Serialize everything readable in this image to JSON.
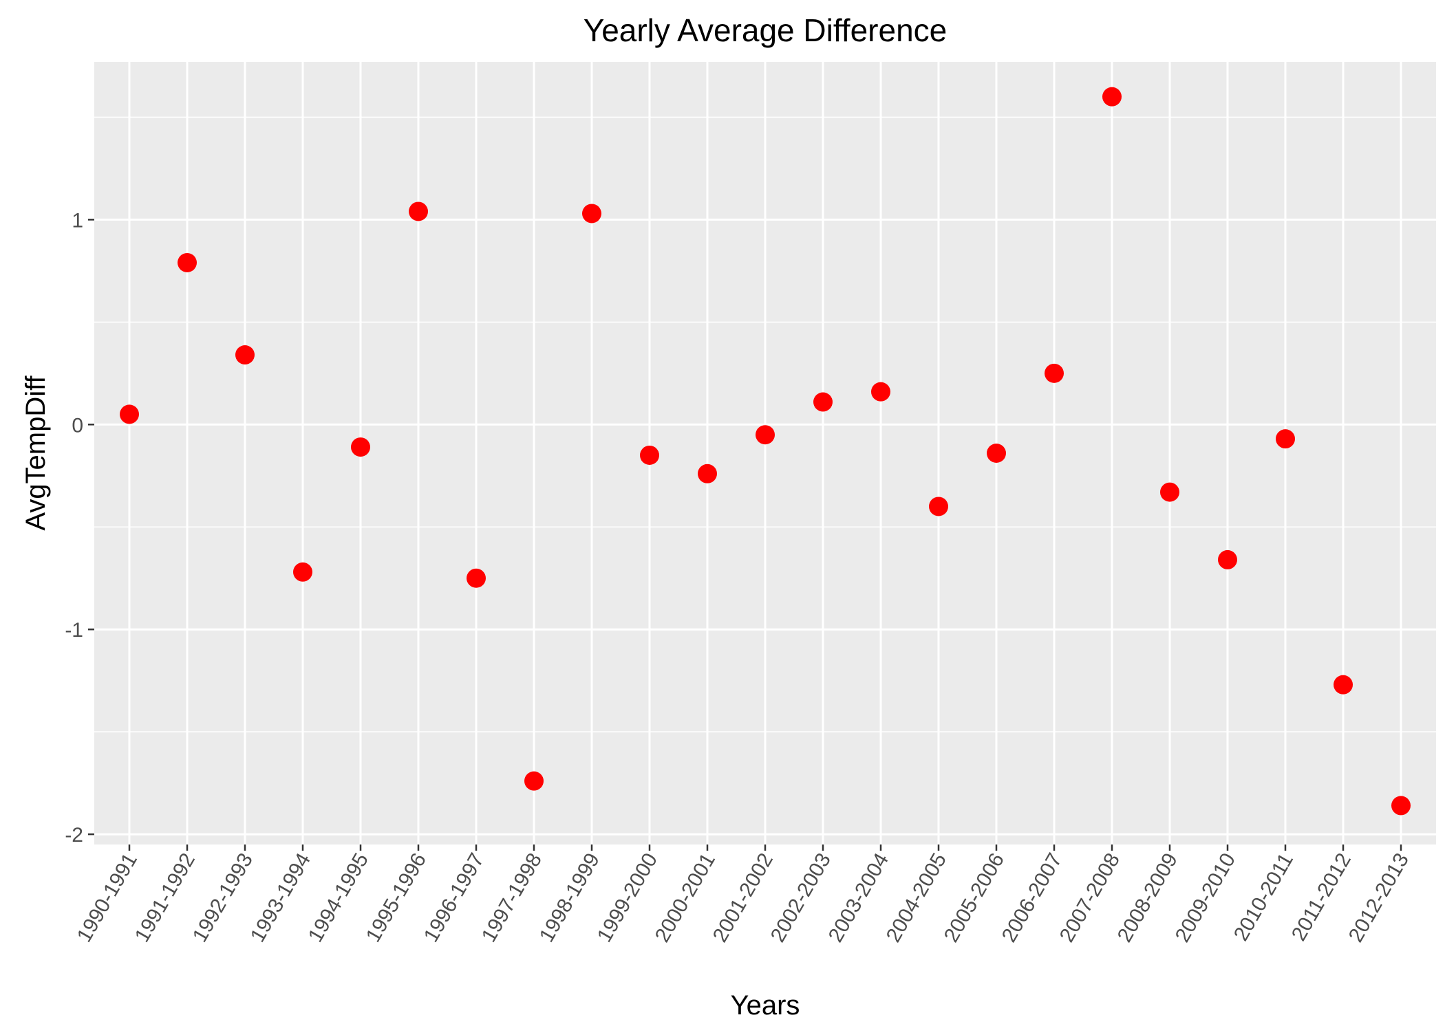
{
  "chart_data": {
    "type": "scatter",
    "title": "Yearly Average Difference",
    "xlabel": "Years",
    "ylabel": "AvgTempDiff",
    "categories": [
      "1990-1991",
      "1991-1992",
      "1992-1993",
      "1993-1994",
      "1994-1995",
      "1995-1996",
      "1996-1997",
      "1997-1998",
      "1998-1999",
      "1999-2000",
      "2000-2001",
      "2001-2002",
      "2002-2003",
      "2003-2004",
      "2004-2005",
      "2005-2006",
      "2006-2007",
      "2007-2008",
      "2008-2009",
      "2009-2010",
      "2010-2011",
      "2011-2012",
      "2012-2013"
    ],
    "values": [
      0.05,
      0.79,
      0.34,
      -0.72,
      -0.11,
      1.04,
      -0.75,
      -1.74,
      1.03,
      -0.15,
      -0.24,
      -0.05,
      0.11,
      0.16,
      -0.4,
      -0.14,
      0.25,
      1.6,
      -0.33,
      -0.66,
      -0.07,
      -1.27,
      -1.86
    ],
    "y_ticks": [
      -2,
      -1,
      0,
      1
    ],
    "ylim": [
      -2.05,
      1.77
    ],
    "grid": true,
    "point_color": "#ff0000",
    "panel_color": "#ebebeb",
    "grid_color": "#ffffff"
  }
}
